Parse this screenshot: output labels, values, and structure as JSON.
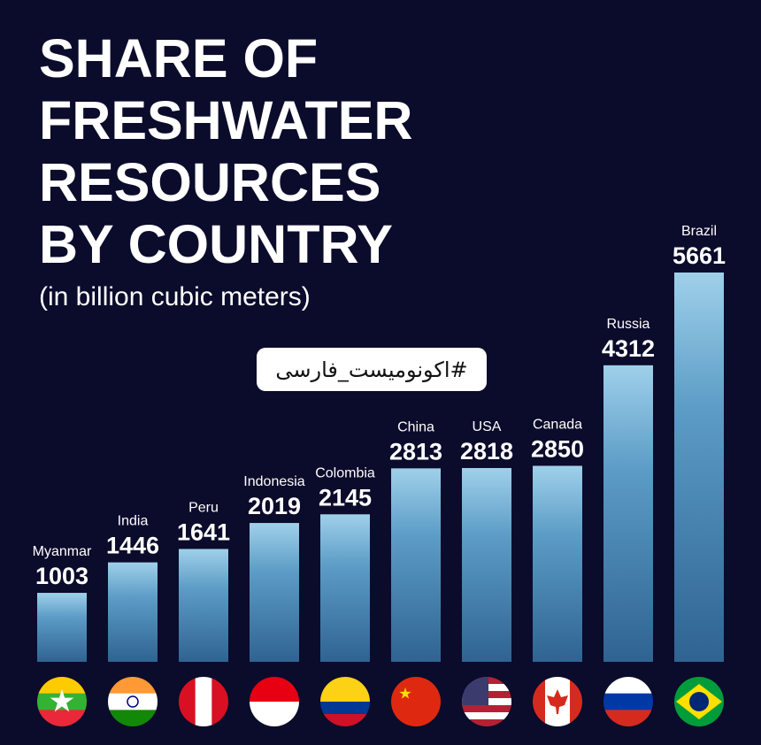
{
  "chart_data": {
    "type": "bar",
    "title": [
      "SHARE OF",
      "FRESHWATER",
      "RESOURCES",
      "BY COUNTRY"
    ],
    "subtitle": "(in billion cubic meters)",
    "watermark": "#اکونومیست_فارسی",
    "categories": [
      "Myanmar",
      "India",
      "Peru",
      "Indonesia",
      "Colombia",
      "China",
      "USA",
      "Canada",
      "Russia",
      "Brazil"
    ],
    "values": [
      1003,
      1446,
      1641,
      2019,
      2145,
      2813,
      2818,
      2850,
      4312,
      5661
    ]
  }
}
